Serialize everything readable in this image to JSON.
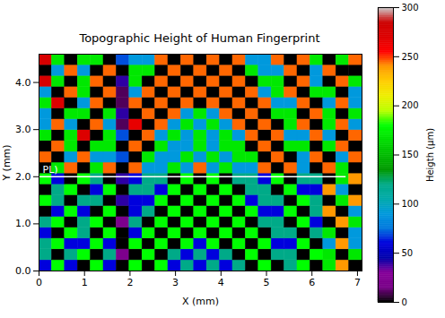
{
  "chart_data": {
    "type": "heatmap",
    "title": "Topographic Height of Human Fingerprint",
    "x_label": "X (mm)",
    "y_label": "Y (mm)",
    "xlim": [
      0,
      7.1
    ],
    "ylim": [
      0,
      4.6
    ],
    "xticks": [
      0,
      1,
      2,
      3,
      4,
      5,
      6,
      7
    ],
    "yticks": [
      0,
      1,
      2,
      3,
      4
    ],
    "x_edges": [
      0,
      0.284,
      0.568,
      0.852,
      1.136,
      1.42,
      1.704,
      1.988,
      2.272,
      2.556,
      2.84,
      3.124,
      3.408,
      3.692,
      3.976,
      4.26,
      4.544,
      4.828,
      5.112,
      5.396,
      5.68,
      5.964,
      6.248,
      6.532,
      6.816,
      7.1
    ],
    "y_edges": [
      0,
      0.23,
      0.46,
      0.69,
      0.92,
      1.15,
      1.38,
      1.61,
      1.84,
      2.07,
      2.3,
      2.53,
      2.76,
      2.99,
      3.22,
      3.45,
      3.68,
      3.91,
      4.14,
      4.37,
      4.6
    ],
    "cells": [
      [
        60,
        180,
        60,
        0,
        180,
        60,
        0,
        180,
        0,
        180,
        60,
        120,
        60,
        120,
        60,
        120,
        0,
        180,
        0,
        120,
        180,
        0,
        170,
        240,
        0
      ],
      [
        120,
        0,
        120,
        180,
        0,
        120,
        20,
        0,
        180,
        0,
        120,
        60,
        120,
        60,
        120,
        0,
        180,
        0,
        120,
        120,
        0,
        180,
        170,
        0,
        170
      ],
      [
        120,
        180,
        60,
        60,
        180,
        60,
        0,
        180,
        0,
        180,
        0,
        180,
        60,
        180,
        0,
        180,
        0,
        180,
        60,
        60,
        180,
        0,
        90,
        240,
        90
      ],
      [
        60,
        0,
        180,
        120,
        0,
        180,
        0,
        60,
        180,
        0,
        180,
        0,
        180,
        0,
        180,
        0,
        180,
        0,
        120,
        120,
        0,
        120,
        170,
        0,
        90
      ],
      [
        120,
        180,
        0,
        120,
        180,
        0,
        20,
        120,
        0,
        180,
        0,
        180,
        0,
        180,
        0,
        180,
        0,
        120,
        120,
        0,
        180,
        60,
        0,
        240,
        170
      ],
      [
        0,
        60,
        180,
        60,
        0,
        180,
        0,
        60,
        120,
        0,
        180,
        0,
        180,
        0,
        180,
        0,
        180,
        60,
        60,
        180,
        0,
        120,
        240,
        0,
        90
      ],
      [
        180,
        120,
        0,
        120,
        120,
        0,
        40,
        60,
        60,
        180,
        0,
        180,
        0,
        180,
        0,
        180,
        60,
        120,
        120,
        0,
        180,
        120,
        0,
        170,
        240
      ],
      [
        0,
        120,
        180,
        0,
        60,
        180,
        0,
        120,
        120,
        60,
        180,
        0,
        180,
        0,
        180,
        0,
        120,
        120,
        0,
        180,
        60,
        60,
        240,
        90,
        0
      ],
      [
        180,
        60,
        0,
        180,
        120,
        0,
        40,
        60,
        120,
        120,
        0,
        180,
        0,
        180,
        0,
        120,
        120,
        60,
        180,
        0,
        120,
        120,
        0,
        170,
        240
      ],
      [
        0,
        170,
        245,
        0,
        170,
        245,
        0,
        245,
        90,
        90,
        170,
        90,
        245,
        90,
        170,
        90,
        90,
        245,
        0,
        245,
        90,
        0,
        245,
        170,
        0
      ],
      [
        245,
        0,
        90,
        245,
        90,
        90,
        70,
        0,
        170,
        90,
        90,
        170,
        90,
        170,
        90,
        170,
        170,
        0,
        245,
        0,
        90,
        245,
        0,
        90,
        245
      ],
      [
        0,
        245,
        170,
        0,
        170,
        170,
        0,
        245,
        0,
        170,
        90,
        90,
        170,
        90,
        170,
        170,
        0,
        245,
        0,
        170,
        170,
        0,
        170,
        245,
        0
      ],
      [
        170,
        0,
        170,
        270,
        0,
        170,
        70,
        0,
        245,
        90,
        170,
        90,
        170,
        90,
        170,
        90,
        245,
        0,
        245,
        90,
        90,
        245,
        90,
        0,
        245
      ],
      [
        90,
        245,
        90,
        0,
        245,
        90,
        10,
        265,
        0,
        245,
        90,
        170,
        90,
        170,
        90,
        245,
        0,
        245,
        0,
        170,
        245,
        0,
        170,
        245,
        90
      ],
      [
        90,
        0,
        170,
        170,
        0,
        170,
        40,
        0,
        245,
        0,
        245,
        90,
        170,
        90,
        245,
        0,
        245,
        0,
        170,
        170,
        0,
        245,
        170,
        0,
        170
      ],
      [
        170,
        270,
        0,
        90,
        245,
        0,
        10,
        245,
        0,
        245,
        0,
        245,
        0,
        245,
        0,
        245,
        0,
        245,
        90,
        90,
        245,
        0,
        90,
        245,
        90
      ],
      [
        90,
        0,
        245,
        170,
        0,
        245,
        10,
        90,
        245,
        0,
        245,
        0,
        245,
        0,
        245,
        0,
        245,
        90,
        170,
        245,
        0,
        170,
        170,
        0,
        90
      ],
      [
        275,
        170,
        0,
        170,
        245,
        0,
        40,
        170,
        0,
        245,
        0,
        245,
        0,
        245,
        0,
        245,
        0,
        170,
        170,
        0,
        245,
        90,
        0,
        245,
        170
      ],
      [
        0,
        90,
        245,
        90,
        0,
        245,
        0,
        170,
        170,
        0,
        245,
        0,
        245,
        0,
        245,
        0,
        170,
        90,
        90,
        245,
        0,
        90,
        245,
        0,
        0
      ],
      [
        275,
        170,
        0,
        170,
        170,
        0,
        70,
        90,
        90,
        245,
        0,
        245,
        0,
        245,
        0,
        245,
        90,
        90,
        245,
        0,
        245,
        170,
        0,
        170,
        245
      ]
    ],
    "colorbar": {
      "label": "Heigth (μm)",
      "range": [
        0,
        300
      ],
      "ticks": [
        0,
        50,
        100,
        150,
        200,
        250,
        300
      ]
    },
    "annotations": [
      {
        "type": "line",
        "x": [
          0,
          6.75
        ],
        "y": 2,
        "label": "PL)"
      }
    ]
  }
}
